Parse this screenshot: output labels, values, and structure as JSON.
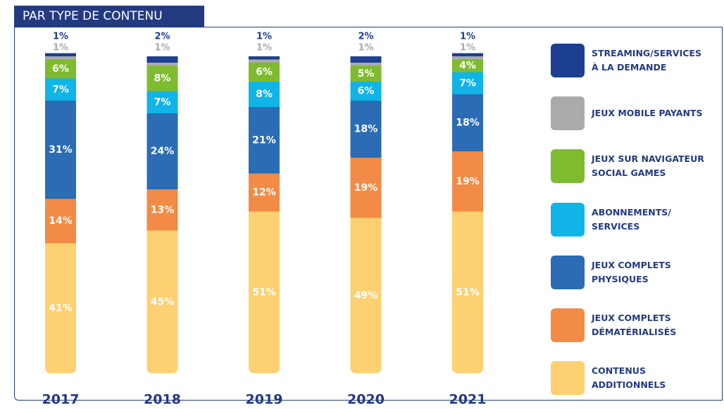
{
  "chart_data": {
    "type": "stacked-bar",
    "title": "PAR TYPE DE CONTENU",
    "categories": [
      "2017",
      "2018",
      "2019",
      "2020",
      "2021"
    ],
    "ylim": [
      0,
      100
    ],
    "series": [
      {
        "name": "CONTENUS\nADDITIONNELS",
        "color": "#fdd071",
        "values": [
          41,
          45,
          51,
          49,
          51
        ],
        "value_labels": [
          "41%",
          "45%",
          "51%",
          "49%",
          "51%"
        ]
      },
      {
        "name": "JEUX COMPLETS\nDÉMATÉRIALISÉS",
        "color": "#f28b45",
        "values": [
          14,
          13,
          12,
          19,
          19
        ],
        "value_labels": [
          "14%",
          "13%",
          "12%",
          "19%",
          "19%"
        ]
      },
      {
        "name": "JEUX COMPLETS\nPHYSIQUES",
        "color": "#2b6cb4",
        "values": [
          31,
          24,
          21,
          18,
          18
        ],
        "value_labels": [
          "31%",
          "24%",
          "21%",
          "18%",
          "18%"
        ]
      },
      {
        "name": "ABONNEMENTS/\nSERVICES",
        "color": "#10b4e6",
        "values": [
          7,
          7,
          8,
          6,
          7
        ],
        "value_labels": [
          "7%",
          "7%",
          "8%",
          "6%",
          "7%"
        ]
      },
      {
        "name": "JEUX SUR NAVIGATEUR\nSOCIAL GAMES",
        "color": "#7fbb2f",
        "values": [
          6,
          8,
          6,
          5,
          4
        ],
        "value_labels": [
          "6%",
          "8%",
          "6%",
          "5%",
          "4%"
        ]
      },
      {
        "name": "JEUX MOBILE PAYANTS",
        "color": "#aaaaaa",
        "values": [
          1,
          1,
          1,
          1,
          1
        ],
        "value_labels": [
          "1%",
          "1%",
          "1%",
          "1%",
          "1%"
        ]
      },
      {
        "name": "STREAMING/SERVICES\nÀ LA DEMANDE",
        "color": "#1d3f91",
        "values": [
          1,
          2,
          1,
          2,
          1
        ],
        "value_labels": [
          "1%",
          "2%",
          "1%",
          "2%",
          "1%"
        ]
      }
    ]
  }
}
